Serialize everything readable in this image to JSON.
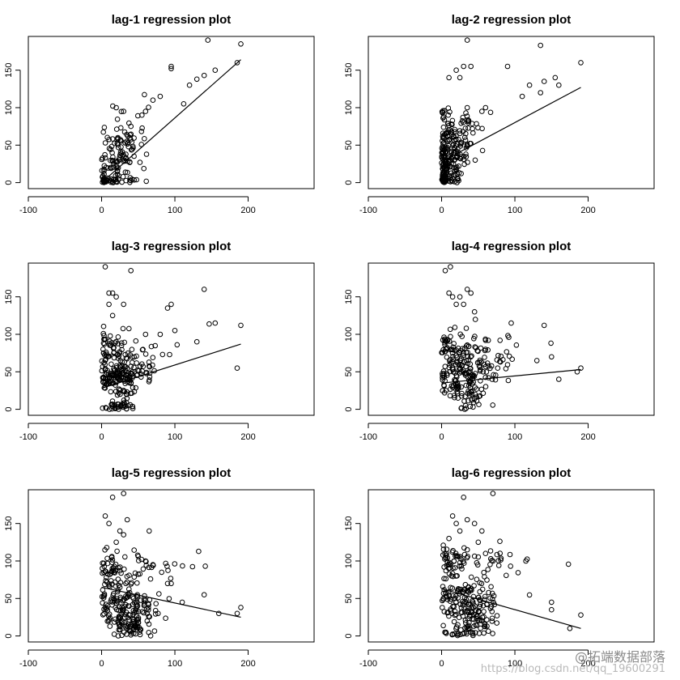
{
  "chart_data": [
    {
      "type": "scatter",
      "title": "lag-1 regression plot",
      "xlabel": "",
      "ylabel": "",
      "xlim": [
        -100,
        290
      ],
      "ylim": [
        -8,
        195
      ],
      "x_ticks": [
        "-100",
        "0",
        "100",
        "200"
      ],
      "y_ticks": [
        "0",
        "50",
        "100",
        "150"
      ],
      "fit_line": {
        "x": [
          0,
          190
        ],
        "y": [
          0,
          164
        ]
      },
      "cloud": {
        "spread": 22,
        "max": 190,
        "clusters": [
          [
            0.0,
            0.9,
            18,
            22,
            7,
            45
          ],
          [
            0.9,
            1.3,
            18,
            14,
            26,
            34
          ],
          [
            0.95,
            1.0,
            22,
            20,
            8,
            40
          ],
          [
            1.4,
            0.6,
            30,
            12,
            1,
            28
          ],
          [
            0.0,
            0.8,
            60,
            25,
            3,
            4
          ]
        ]
      },
      "points": {
        "x": [
          145,
          190,
          185,
          155,
          140,
          130,
          120,
          112,
          95,
          95,
          80,
          70,
          60,
          55,
          40,
          30,
          20
        ],
        "y": [
          190,
          185,
          160,
          150,
          143,
          138,
          130,
          105,
          155,
          152,
          115,
          110,
          95,
          90,
          75,
          95,
          100
        ]
      },
      "grid": false,
      "legend": "none"
    },
    {
      "type": "scatter",
      "title": "lag-2 regression plot",
      "xlabel": "",
      "ylabel": "",
      "xlim": [
        -100,
        290
      ],
      "ylim": [
        -8,
        195
      ],
      "x_ticks": [
        "-100",
        "0",
        "100",
        "200"
      ],
      "y_ticks": [
        "0",
        "50",
        "100",
        "150"
      ],
      "fit_line": {
        "x": [
          0,
          190
        ],
        "y": [
          28,
          127
        ]
      },
      "cloud": {
        "spread": 30,
        "max": 190,
        "clusters": [
          [
            0.3,
            0.0,
            5,
            10,
            3,
            70
          ],
          [
            0.6,
            0.5,
            12,
            22,
            25,
            110
          ],
          [
            0.1,
            0.0,
            5,
            25,
            70,
            35
          ],
          [
            0.5,
            0.6,
            8,
            25,
            55,
            45
          ]
        ]
      },
      "points": {
        "x": [
          35,
          135,
          190,
          155,
          40,
          30,
          25,
          10,
          35,
          90,
          140,
          160,
          120,
          135,
          110,
          55,
          60,
          20
        ],
        "y": [
          190,
          183,
          160,
          140,
          155,
          155,
          140,
          140,
          100,
          155,
          135,
          130,
          130,
          120,
          115,
          95,
          100,
          150
        ]
      },
      "grid": false,
      "legend": "none"
    },
    {
      "type": "scatter",
      "title": "lag-3 regression plot",
      "xlabel": "",
      "ylabel": "",
      "xlim": [
        -100,
        290
      ],
      "ylim": [
        -8,
        195
      ],
      "x_ticks": [
        "-100",
        "0",
        "100",
        "200"
      ],
      "y_ticks": [
        "0",
        "50",
        "100",
        "150"
      ],
      "fit_line": {
        "x": [
          0,
          190
        ],
        "y": [
          28,
          87
        ]
      },
      "cloud": {
        "spread": 35,
        "max": 190,
        "clusters": [
          [
            0.0,
            0.0,
            6,
            55,
            75,
            70
          ],
          [
            0.2,
            0.0,
            25,
            10,
            5,
            60
          ],
          [
            0.15,
            0.2,
            30,
            18,
            40,
            100
          ],
          [
            0.0,
            0.0,
            30,
            20,
            60,
            30
          ]
        ]
      },
      "points": {
        "x": [
          5,
          40,
          140,
          10,
          15,
          20,
          10,
          30,
          95,
          90,
          155,
          190,
          185,
          100,
          130,
          80,
          60,
          15
        ],
        "y": [
          190,
          185,
          160,
          155,
          155,
          150,
          140,
          140,
          140,
          135,
          115,
          112,
          55,
          105,
          90,
          100,
          100,
          125
        ]
      },
      "grid": false,
      "legend": "none"
    },
    {
      "type": "scatter",
      "title": "lag-4 regression plot",
      "xlabel": "",
      "ylabel": "",
      "xlim": [
        -100,
        290
      ],
      "ylim": [
        -8,
        195
      ],
      "x_ticks": [
        "-100",
        "0",
        "100",
        "200"
      ],
      "y_ticks": [
        "0",
        "50",
        "100",
        "150"
      ],
      "fit_line": {
        "x": [
          0,
          190
        ],
        "y": [
          35,
          53
        ]
      },
      "cloud": {
        "spread": 35,
        "max": 190,
        "clusters": [
          [
            0.0,
            0.0,
            8,
            55,
            75,
            80
          ],
          [
            0.0,
            0.0,
            30,
            15,
            20,
            40
          ],
          [
            0.1,
            0.0,
            30,
            25,
            50,
            90
          ],
          [
            0.0,
            0.0,
            40,
            18,
            40,
            40
          ]
        ]
      },
      "points": {
        "x": [
          5,
          12,
          35,
          40,
          25,
          30,
          20,
          10,
          15,
          95,
          140,
          190,
          185,
          150,
          160,
          130,
          60,
          45
        ],
        "y": [
          185,
          190,
          160,
          155,
          150,
          140,
          140,
          155,
          150,
          115,
          112,
          55,
          50,
          70,
          40,
          65,
          80,
          130
        ]
      },
      "grid": false,
      "legend": "none"
    },
    {
      "type": "scatter",
      "title": "lag-5 regression plot",
      "xlabel": "",
      "ylabel": "",
      "xlim": [
        -100,
        290
      ],
      "ylim": [
        -8,
        195
      ],
      "x_ticks": [
        "-100",
        "0",
        "100",
        "200"
      ],
      "y_ticks": [
        "0",
        "50",
        "100",
        "150"
      ],
      "fit_line": {
        "x": [
          0,
          190
        ],
        "y": [
          65,
          25
        ]
      },
      "cloud": {
        "spread": 25,
        "max": 190,
        "clusters": [
          [
            0.0,
            0.0,
            8,
            55,
            90,
            80
          ],
          [
            0.0,
            0.0,
            30,
            25,
            45,
            70
          ],
          [
            0.0,
            0.0,
            40,
            18,
            15,
            80
          ],
          [
            0.0,
            0.0,
            40,
            15,
            35,
            40
          ]
        ]
      },
      "points": {
        "x": [
          15,
          30,
          5,
          35,
          65,
          10,
          25,
          30,
          20,
          60,
          70,
          90,
          95,
          190,
          185,
          160,
          140,
          110
        ],
        "y": [
          185,
          190,
          160,
          155,
          140,
          150,
          140,
          135,
          125,
          100,
          95,
          70,
          70,
          38,
          30,
          30,
          55,
          45
        ]
      },
      "grid": false,
      "legend": "none"
    },
    {
      "type": "scatter",
      "title": "lag-6 regression plot",
      "xlabel": "",
      "ylabel": "",
      "xlim": [
        -100,
        290
      ],
      "ylim": [
        -8,
        195
      ],
      "x_ticks": [
        "-100",
        "0",
        "100",
        "200"
      ],
      "y_ticks": [
        "0",
        "50",
        "100",
        "150"
      ],
      "fit_line": {
        "x": [
          0,
          190
        ],
        "y": [
          63,
          10
        ]
      },
      "cloud": {
        "spread": 25,
        "max": 190,
        "clusters": [
          [
            0.0,
            0.0,
            8,
            55,
            100,
            80
          ],
          [
            0.0,
            0.0,
            30,
            25,
            50,
            70
          ],
          [
            0.1,
            0.0,
            40,
            18,
            15,
            80
          ],
          [
            -0.2,
            0.0,
            40,
            15,
            45,
            40
          ]
        ]
      },
      "points": {
        "x": [
          30,
          70,
          15,
          35,
          45,
          55,
          25,
          10,
          50,
          60,
          70,
          35,
          115,
          190,
          175,
          150,
          150,
          20
        ],
        "y": [
          185,
          190,
          160,
          155,
          150,
          140,
          140,
          130,
          125,
          110,
          100,
          115,
          100,
          28,
          10,
          45,
          35,
          150
        ]
      },
      "grid": false,
      "legend": "none"
    }
  ],
  "watermark": {
    "brand_text": "@拓端数据部落",
    "url_text": "https://blog.csdn.net/qq_19600291"
  }
}
